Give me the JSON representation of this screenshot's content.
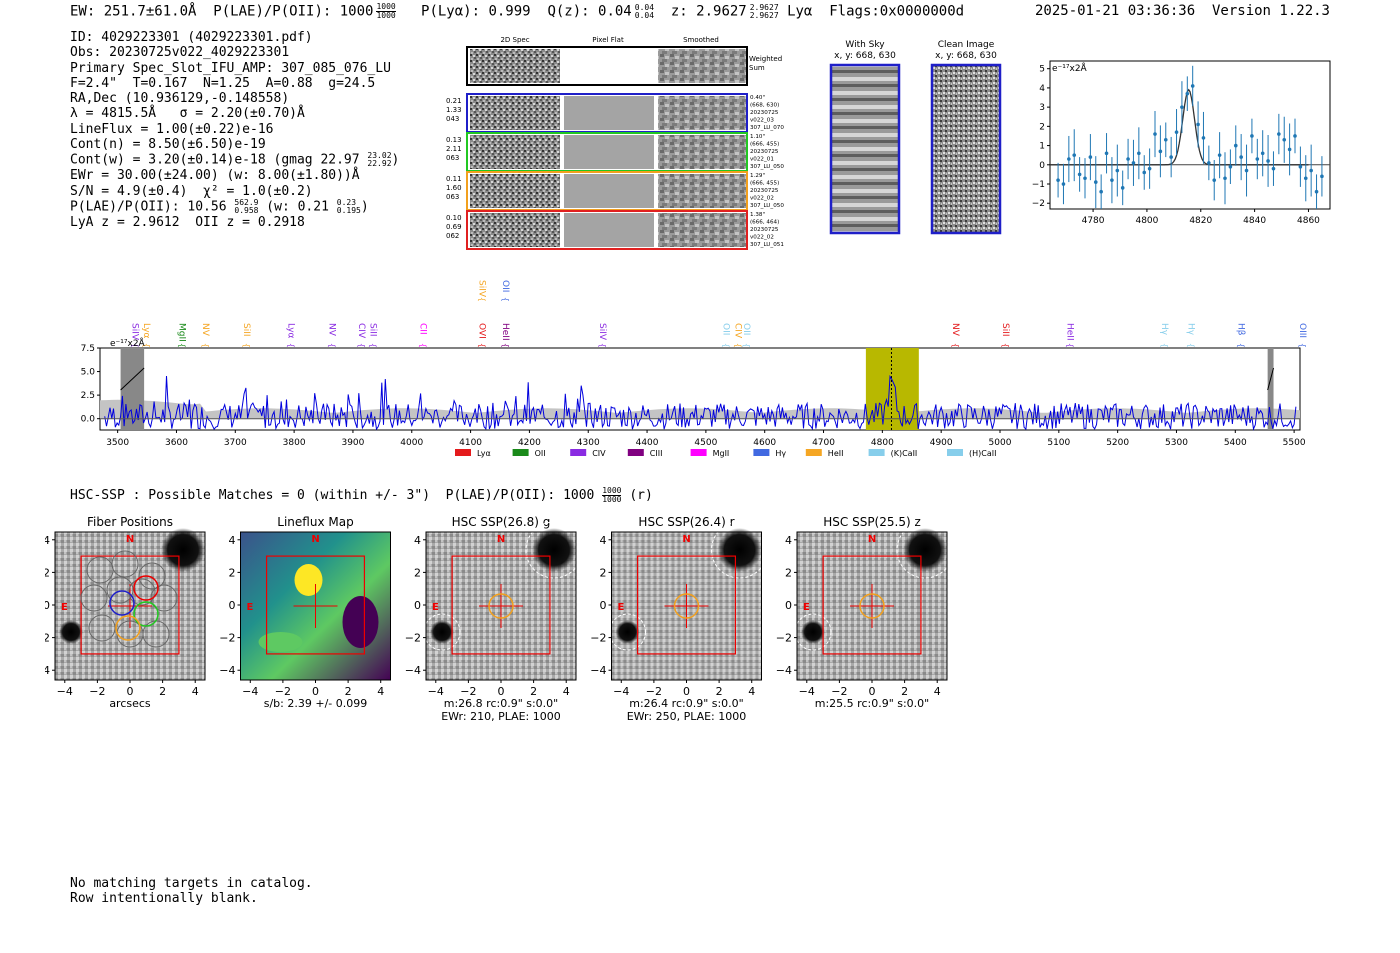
{
  "header": {
    "ew": "EW: 251.7±61.0Å",
    "plae": "P(LAE)/P(OII): 1000",
    "plae_hi": "1000",
    "plae_lo": "1000",
    "plya": "P(Lyα): 0.999",
    "qz": "Q(z): 0.04",
    "qz_hi": "0.04",
    "qz_lo": "0.04",
    "z": "z: 2.9627",
    "z_hi": "2.9627",
    "z_lo": "2.9627",
    "line": "Lyα",
    "flags": "Flags:0x0000000d"
  },
  "datetime": "2025-01-21 03:36:36  Version 1.22.3",
  "info": {
    "id": "ID: 4029223301 (4029223301.pdf)",
    "obs": "Obs: 20230725v022_4029223301",
    "primary": "Primary Spec_Slot_IFU_AMP: 307_085_076_LU",
    "fwhm": "F=2.4\"  T=0.167  N=1.25  A=0.88  g=24.5",
    "radec": "RA,Dec (10.936129,-0.148558)",
    "lambda": "λ = 4815.5Å   σ = 2.20(±0.70)Å",
    "lineflux": "LineFlux = 1.00(±0.22)e-16",
    "contn": "Cont(n) = 8.50(±6.50)e-19",
    "contw": "Cont(w) = 3.20(±0.14)e-18 (gmag 22.97",
    "contw_hi": "23.02",
    "contw_lo": "22.92",
    "ewr": "EWr = 30.00(±24.00) (w: 8.00(±1.80))Å",
    "sn": "S/N = 4.9(±0.4)  χ² = 1.0(±0.2)",
    "plae2": "P(LAE)/P(OII): 10.56",
    "plae2_hi": "562.9",
    "plae2_lo": "0.958",
    "plae2_w": "(w: 0.21",
    "plae2_w_hi": "0.23",
    "plae2_w_lo": "0.195",
    "lyaz": "LyA z = 2.9612  OII z = 0.2918"
  },
  "cutouts": {
    "col_2d": "2D Spec",
    "col_flat": "Pixel Flat",
    "col_smooth": "Smoothed",
    "weighted": "Weighted",
    "sum": "Sum",
    "rows": [
      {
        "left": [
          "0.21",
          "1.33",
          "043"
        ],
        "right": [
          "0.40\"",
          "(668, 630)",
          "20230725",
          "v022_03",
          "307_LU_070"
        ],
        "color": "#1f1fc8"
      },
      {
        "left": [
          "0.13",
          "2.11",
          "063"
        ],
        "right": [
          "1.10\"",
          "(666, 455)",
          "20230725",
          "v022_01",
          "307_LU_050"
        ],
        "color": "#22c822"
      },
      {
        "left": [
          "0.11",
          "1.60",
          "063"
        ],
        "right": [
          "1.29\"",
          "(666, 455)",
          "20230725",
          "v022_02",
          "307_LU_050"
        ],
        "color": "#f2a01e"
      },
      {
        "left": [
          "0.10",
          "0.69",
          "062"
        ],
        "right": [
          "1.38\"",
          "(666, 464)",
          "20230725",
          "v022_02",
          "307_LU_051"
        ],
        "color": "#e02020"
      }
    ]
  },
  "sky": {
    "title": "With Sky",
    "xy": "x, y: 668, 630"
  },
  "clean": {
    "title": "Clean Image",
    "xy": "x, y: 668, 630"
  },
  "zoom_plot": {
    "unit": "e⁻¹⁷x2Å",
    "yticks": [
      "5",
      "4",
      "3",
      "2",
      "1",
      "0",
      "−1",
      "−2"
    ],
    "xticks": [
      "4780",
      "4800",
      "4820",
      "4840",
      "4860"
    ]
  },
  "chart_data": [
    {
      "type": "scatter",
      "title": "",
      "xlabel": "",
      "ylabel": "e-17x2Å",
      "xlim": [
        4764,
        4868
      ],
      "ylim": [
        -2.3,
        5.4
      ],
      "x": [
        4767,
        4769,
        4771,
        4773,
        4775,
        4777,
        4779,
        4781,
        4783,
        4785,
        4787,
        4789,
        4791,
        4793,
        4795,
        4797,
        4799,
        4801,
        4803,
        4805,
        4807,
        4809,
        4811,
        4813,
        4815,
        4817,
        4819,
        4821,
        4823,
        4825,
        4827,
        4829,
        4831,
        4833,
        4835,
        4837,
        4839,
        4841,
        4843,
        4845,
        4847,
        4849,
        4851,
        4853,
        4855,
        4857,
        4859,
        4861,
        4863,
        4865
      ],
      "y": [
        -0.8,
        -1.0,
        0.3,
        0.5,
        -0.5,
        -0.7,
        0.4,
        -0.9,
        -1.4,
        0.6,
        -0.8,
        -0.3,
        -1.2,
        0.3,
        0.1,
        0.6,
        -0.4,
        -0.2,
        1.6,
        0.7,
        1.3,
        0.4,
        1.7,
        3.0,
        3.7,
        4.1,
        2.1,
        1.4,
        0.1,
        -0.8,
        0.5,
        -0.7,
        -0.1,
        1.0,
        0.4,
        -0.3,
        1.5,
        0.3,
        0.6,
        0.2,
        -0.2,
        1.6,
        1.3,
        0.8,
        1.5,
        -0.1,
        -0.7,
        -0.3,
        -1.4,
        -0.6
      ],
      "fit": "gaussian",
      "fit_center": 4815.5,
      "fit_amplitude": 3.9
    },
    {
      "type": "line",
      "title": "",
      "xlabel": "",
      "ylabel": "e-17x2Å",
      "xlim": [
        3470,
        5510
      ],
      "ylim": [
        -1.2,
        7.5
      ],
      "xticks": [
        3500,
        3600,
        3700,
        3800,
        3900,
        4000,
        4100,
        4200,
        4300,
        4400,
        4500,
        4600,
        4700,
        4800,
        4900,
        5000,
        5100,
        5200,
        5300,
        5400,
        5500
      ],
      "yticks": [
        0.0,
        2.5,
        5.0,
        7.5
      ],
      "series": [
        {
          "name": "spectrum",
          "color": "#0000dd"
        }
      ],
      "highlight_range": [
        4772,
        4862
      ],
      "line_marker": 4815.5,
      "masked_ranges": [
        [
          3505,
          3545
        ],
        [
          5455,
          5465
        ]
      ]
    }
  ],
  "spectrum": {
    "unit": "e⁻¹⁷x2Å",
    "legend": [
      {
        "label": "Lyα",
        "color": "#e41a1c"
      },
      {
        "label": "OII",
        "color": "#1a8a1a"
      },
      {
        "label": "CIV",
        "color": "#8a2be2"
      },
      {
        "label": "CIII",
        "color": "#800080"
      },
      {
        "label": "MgII",
        "color": "#ff00ff"
      },
      {
        "label": "Hγ",
        "color": "#4169e1"
      },
      {
        "label": "HeII",
        "color": "#f5a623"
      },
      {
        "label": "(K)CaII",
        "color": "#87ceeb"
      },
      {
        "label": "(H)CaII",
        "color": "#87ceeb"
      }
    ],
    "top_lines": [
      {
        "label": "SiIV",
        "w": 4110,
        "color": "#f5a623"
      },
      {
        "label": "OII",
        "w": 4150,
        "color": "#4169e1"
      }
    ],
    "lines": [
      {
        "label": "SiIV",
        "w": 3520,
        "color": "#8a2be2"
      },
      {
        "label": "Lyα",
        "w": 3540,
        "color": "#f5a623"
      },
      {
        "label": "MgII",
        "w": 3600,
        "color": "#1a8a1a"
      },
      {
        "label": "NV",
        "w": 3640,
        "color": "#f5a623"
      },
      {
        "label": "SiII",
        "w": 3710,
        "color": "#f5a623"
      },
      {
        "label": "Lyα",
        "w": 3785,
        "color": "#8a2be2"
      },
      {
        "label": "NV",
        "w": 3855,
        "color": "#8a2be2"
      },
      {
        "label": "CIV",
        "w": 3905,
        "color": "#8a2be2"
      },
      {
        "label": "SiII",
        "w": 3925,
        "color": "#8a2be2"
      },
      {
        "label": "CII",
        "w": 4010,
        "color": "#ff00ff"
      },
      {
        "label": "OVI",
        "w": 4110,
        "color": "#e41a1c"
      },
      {
        "label": "HeII",
        "w": 4150,
        "color": "#800080"
      },
      {
        "label": "SiIV",
        "w": 4315,
        "color": "#8a2be2"
      },
      {
        "label": "OII",
        "w": 4525,
        "color": "#87ceeb"
      },
      {
        "label": "CIV",
        "w": 4545,
        "color": "#f5a623"
      },
      {
        "label": "OII",
        "w": 4560,
        "color": "#87ceeb"
      },
      {
        "label": "NV",
        "w": 4915,
        "color": "#e41a1c"
      },
      {
        "label": "SiII",
        "w": 5000,
        "color": "#e41a1c"
      },
      {
        "label": "HeII",
        "w": 5110,
        "color": "#8a2be2"
      },
      {
        "label": "Hγ",
        "w": 5270,
        "color": "#87ceeb"
      },
      {
        "label": "Hγ",
        "w": 5315,
        "color": "#87ceeb"
      },
      {
        "label": "Hβ",
        "w": 5400,
        "color": "#4169e1"
      },
      {
        "label": "OIII",
        "w": 5505,
        "color": "#4169e1"
      }
    ]
  },
  "hsc": {
    "summary": "HSC-SSP : Possible Matches = 0 (within +/- 3\")  P(LAE)/P(OII): 1000",
    "summary_hi": "1000",
    "summary_lo": "1000",
    "summary_tail": "(r)",
    "panels": [
      {
        "title": "Fiber Positions",
        "xlabel": "arcsecs",
        "cap2": ""
      },
      {
        "title": "Lineflux Map",
        "xlabel": "s/b: 2.39 +/- 0.099",
        "cap2": ""
      },
      {
        "title": "HSC SSP(26.8) g",
        "xlabel": "m:26.8 rc:0.9\"  s:0.0\"",
        "cap2": "EWr: 210, PLAE: 1000"
      },
      {
        "title": "HSC SSP(26.4) r",
        "xlabel": "m:26.4 rc:0.9\"  s:0.0\"",
        "cap2": "EWr: 250, PLAE: 1000"
      },
      {
        "title": "HSC SSP(25.5) z",
        "xlabel": "m:25.5 rc:0.9\"  s:0.0\"",
        "cap2": ""
      }
    ],
    "yticks": [
      "4",
      "2",
      "0",
      "−2",
      "−4"
    ],
    "xticks": [
      "−4",
      "−2",
      "0",
      "2",
      "4"
    ],
    "n_label": "N",
    "e_label": "E"
  },
  "footer": {
    "line1": "No matching targets in catalog.",
    "line2": "Row intentionally blank."
  }
}
